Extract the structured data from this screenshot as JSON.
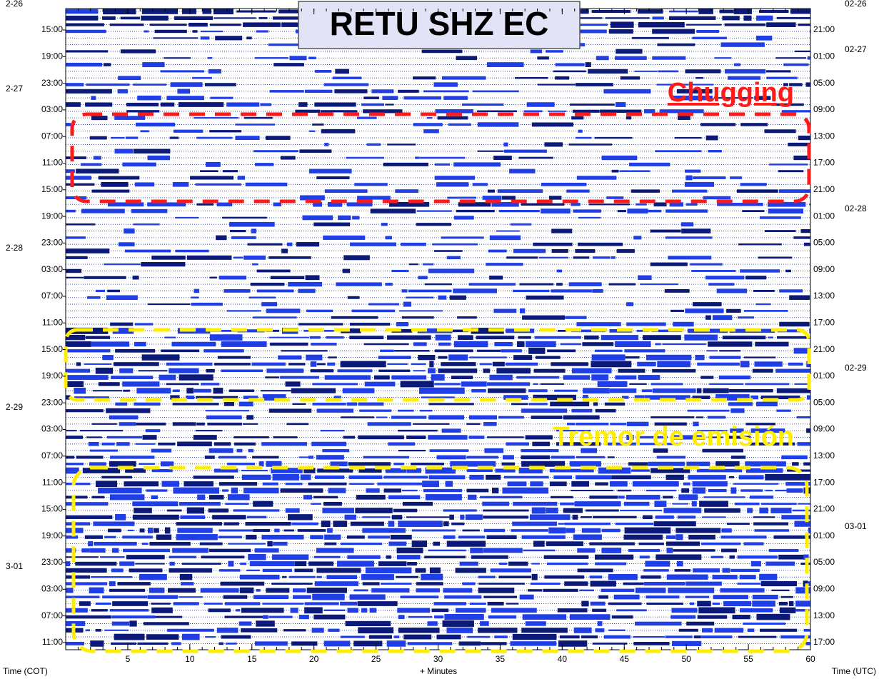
{
  "chart_data": {
    "type": "helicorder",
    "title": "RETU SHZ EC",
    "xlabel": "+ Minutes",
    "left_axis_label": "Time (COT)",
    "right_axis_label": "Time (UTC)",
    "xlim": [
      0,
      60
    ],
    "xticks": [
      5,
      10,
      15,
      20,
      25,
      30,
      35,
      40,
      45,
      50,
      55,
      60
    ],
    "left_times": [
      "15:00",
      "19:00",
      "23:00",
      "03:00",
      "07:00",
      "11:00",
      "15:00",
      "19:00",
      "23:00",
      "03:00",
      "07:00",
      "11:00",
      "15:00",
      "19:00",
      "23:00",
      "03:00",
      "07:00",
      "11:00",
      "15:00",
      "19:00",
      "23:00",
      "03:00",
      "07:00",
      "11:00"
    ],
    "right_times": [
      "21:00",
      "01:00",
      "05:00",
      "09:00",
      "13:00",
      "17:00",
      "21:00",
      "01:00",
      "05:00",
      "09:00",
      "13:00",
      "17:00",
      "21:00",
      "01:00",
      "05:00",
      "09:00",
      "13:00",
      "17:00",
      "21:00",
      "01:00",
      "05:00",
      "09:00",
      "13:00",
      "17:00"
    ],
    "left_dates": [
      "2-26",
      "2-27",
      "2-28",
      "2-29",
      "3-01"
    ],
    "right_dates": [
      "02-26",
      "02-27",
      "02-28",
      "02-29",
      "03-01"
    ],
    "annotations": [
      {
        "text": "Chugging",
        "color": "#ff1a1a"
      },
      {
        "text": "Tremor de emisión",
        "color": "#ffee00"
      }
    ]
  }
}
